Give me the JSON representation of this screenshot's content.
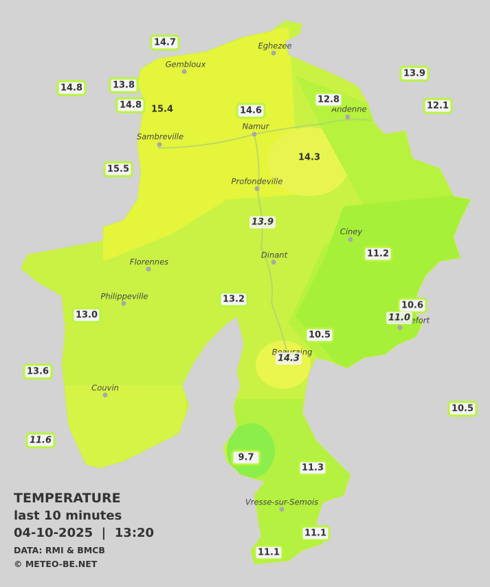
{
  "legend": {
    "title": "TEMPERATURE",
    "period": "last 10 minutes",
    "datetime": "04-10-2025  |  13:20",
    "source": "DATA: RMI & BMCB",
    "credit": "© METEO-BE.NET"
  },
  "cities": [
    "Eghezee",
    "Gembloux",
    "Andenne",
    "Namur",
    "Sambreville",
    "Profondeville",
    "Ciney",
    "Dinant",
    "Florennes",
    "Philippeville",
    "Rochefort",
    "Beauraing",
    "Couvin",
    "Vresse-sur-Semois"
  ],
  "stations": [
    {
      "value": "14.7"
    },
    {
      "value": "13.8"
    },
    {
      "value": "14.8"
    },
    {
      "value": "14.8"
    },
    {
      "value": "15.4"
    },
    {
      "value": "14.6"
    },
    {
      "value": "12.8"
    },
    {
      "value": "13.9"
    },
    {
      "value": "12.1"
    },
    {
      "value": "15.5"
    },
    {
      "value": "14.3"
    },
    {
      "value": "13.9",
      "italic": true
    },
    {
      "value": "11.2"
    },
    {
      "value": "13.2"
    },
    {
      "value": "10.6"
    },
    {
      "value": "11.0",
      "italic": true
    },
    {
      "value": "13.0"
    },
    {
      "value": "10.5"
    },
    {
      "value": "14.3",
      "italic": true
    },
    {
      "value": "13.6"
    },
    {
      "value": "10.5"
    },
    {
      "value": "11.6",
      "italic": true
    },
    {
      "value": "9.7"
    },
    {
      "value": "11.3"
    },
    {
      "value": "11.1"
    },
    {
      "value": "11.1"
    }
  ]
}
